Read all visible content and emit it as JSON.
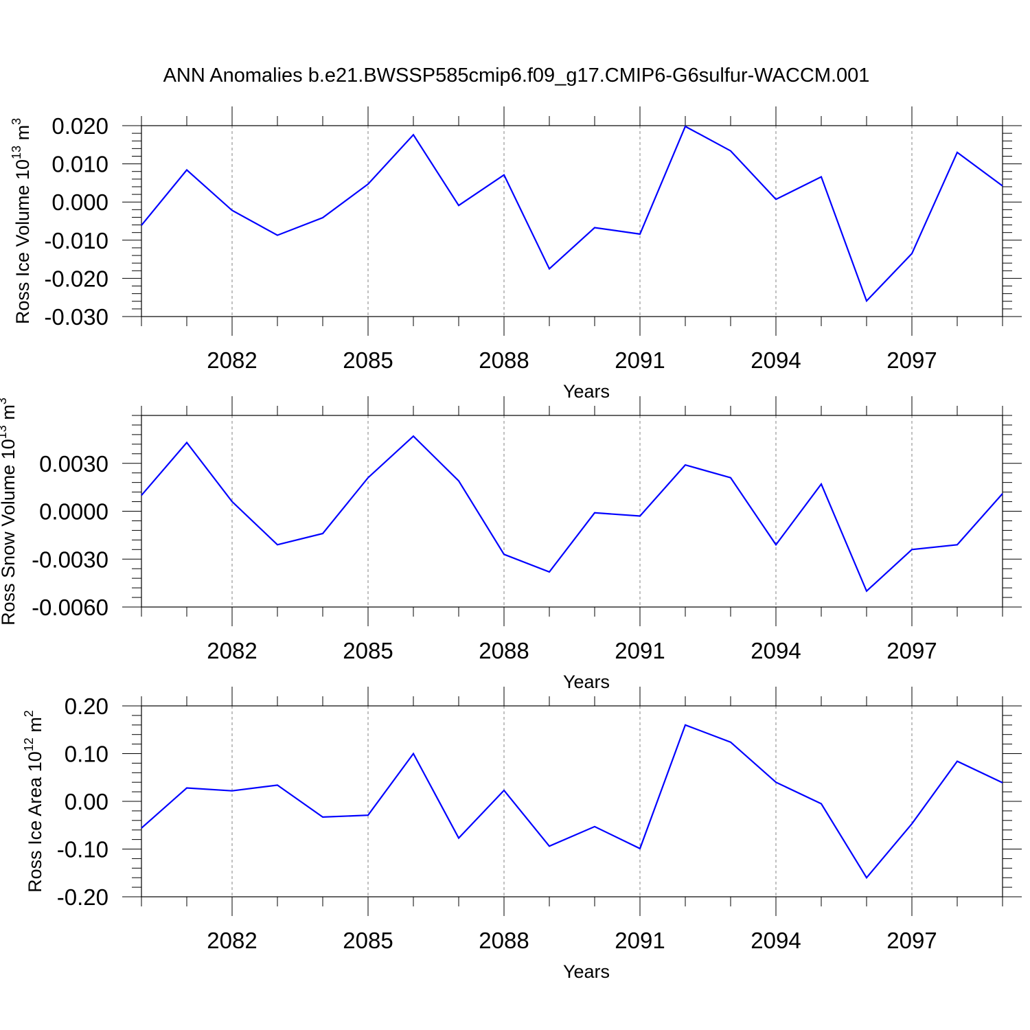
{
  "title": "ANN Anomalies b.e21.BWSSP585cmip6.f09_g17.CMIP6-G6sulfur-WACCM.001",
  "line_color": "#0000ff",
  "chart_data": [
    {
      "type": "line",
      "title": "",
      "xlabel": "Years",
      "ylabel_main": "Ross Ice Volume 10",
      "ylabel_exp": "13",
      "ylabel_unit": " m",
      "ylabel_unit_exp": "3",
      "xlim": [
        2080,
        2099
      ],
      "ylim": [
        -0.03,
        0.02
      ],
      "x_ticks": [
        2082,
        2085,
        2088,
        2091,
        2094,
        2097
      ],
      "y_ticks": [
        -0.03,
        -0.02,
        -0.01,
        0.0,
        0.01,
        0.02
      ],
      "y_tick_labels": [
        "-0.030",
        "-0.020",
        "-0.010",
        "0.000",
        "0.010",
        "0.020"
      ],
      "grid": "vertical-dashed at major x ticks",
      "x": [
        2080,
        2081,
        2082,
        2083,
        2084,
        2085,
        2086,
        2087,
        2088,
        2089,
        2090,
        2091,
        2092,
        2093,
        2094,
        2095,
        2096,
        2097,
        2098,
        2099
      ],
      "values": [
        -0.0061,
        0.0084,
        -0.0022,
        -0.0087,
        -0.0041,
        0.0047,
        0.0176,
        -0.0009,
        0.0071,
        -0.0175,
        -0.0067,
        -0.0084,
        0.0198,
        0.0134,
        0.0007,
        0.0066,
        -0.0259,
        -0.0135,
        0.013,
        0.0042
      ]
    },
    {
      "type": "line",
      "title": "",
      "xlabel": "Years",
      "ylabel_main": "Ross Snow Volume 10",
      "ylabel_exp": "13",
      "ylabel_unit": " m",
      "ylabel_unit_exp": "3",
      "xlim": [
        2080,
        2099
      ],
      "ylim": [
        -0.006,
        0.006
      ],
      "x_ticks": [
        2082,
        2085,
        2088,
        2091,
        2094,
        2097
      ],
      "y_ticks": [
        -0.006,
        -0.003,
        0.0,
        0.003
      ],
      "y_tick_labels": [
        "-0.0060",
        "-0.0030",
        "0.0000",
        "0.0030"
      ],
      "grid": "vertical-dashed at major x ticks",
      "x": [
        2080,
        2081,
        2082,
        2083,
        2084,
        2085,
        2086,
        2087,
        2088,
        2089,
        2090,
        2091,
        2092,
        2093,
        2094,
        2095,
        2096,
        2097,
        2098,
        2099
      ],
      "values": [
        0.001,
        0.0043,
        0.0006,
        -0.0021,
        -0.0014,
        0.0021,
        0.0047,
        0.0019,
        -0.0027,
        -0.0038,
        -0.0001,
        -0.0003,
        0.0029,
        0.0021,
        -0.0021,
        0.0017,
        -0.005,
        -0.0024,
        -0.0021,
        0.0011
      ]
    },
    {
      "type": "line",
      "title": "",
      "xlabel": "Years",
      "ylabel_main": "Ross Ice Area 10",
      "ylabel_exp": "12",
      "ylabel_unit": " m",
      "ylabel_unit_exp": "2",
      "xlim": [
        2080,
        2099
      ],
      "ylim": [
        -0.2,
        0.2
      ],
      "x_ticks": [
        2082,
        2085,
        2088,
        2091,
        2094,
        2097
      ],
      "y_ticks": [
        -0.2,
        -0.1,
        0.0,
        0.1,
        0.2
      ],
      "y_tick_labels": [
        "-0.20",
        "-0.10",
        "0.00",
        "0.10",
        "0.20"
      ],
      "grid": "vertical-dashed at major x ticks",
      "x": [
        2080,
        2081,
        2082,
        2083,
        2084,
        2085,
        2086,
        2087,
        2088,
        2089,
        2090,
        2091,
        2092,
        2093,
        2094,
        2095,
        2096,
        2097,
        2098,
        2099
      ],
      "values": [
        -0.056,
        0.028,
        0.022,
        0.034,
        -0.033,
        -0.029,
        0.1,
        -0.077,
        0.023,
        -0.094,
        -0.053,
        -0.099,
        0.16,
        0.124,
        0.04,
        -0.005,
        -0.16,
        -0.047,
        0.084,
        0.039
      ]
    }
  ]
}
